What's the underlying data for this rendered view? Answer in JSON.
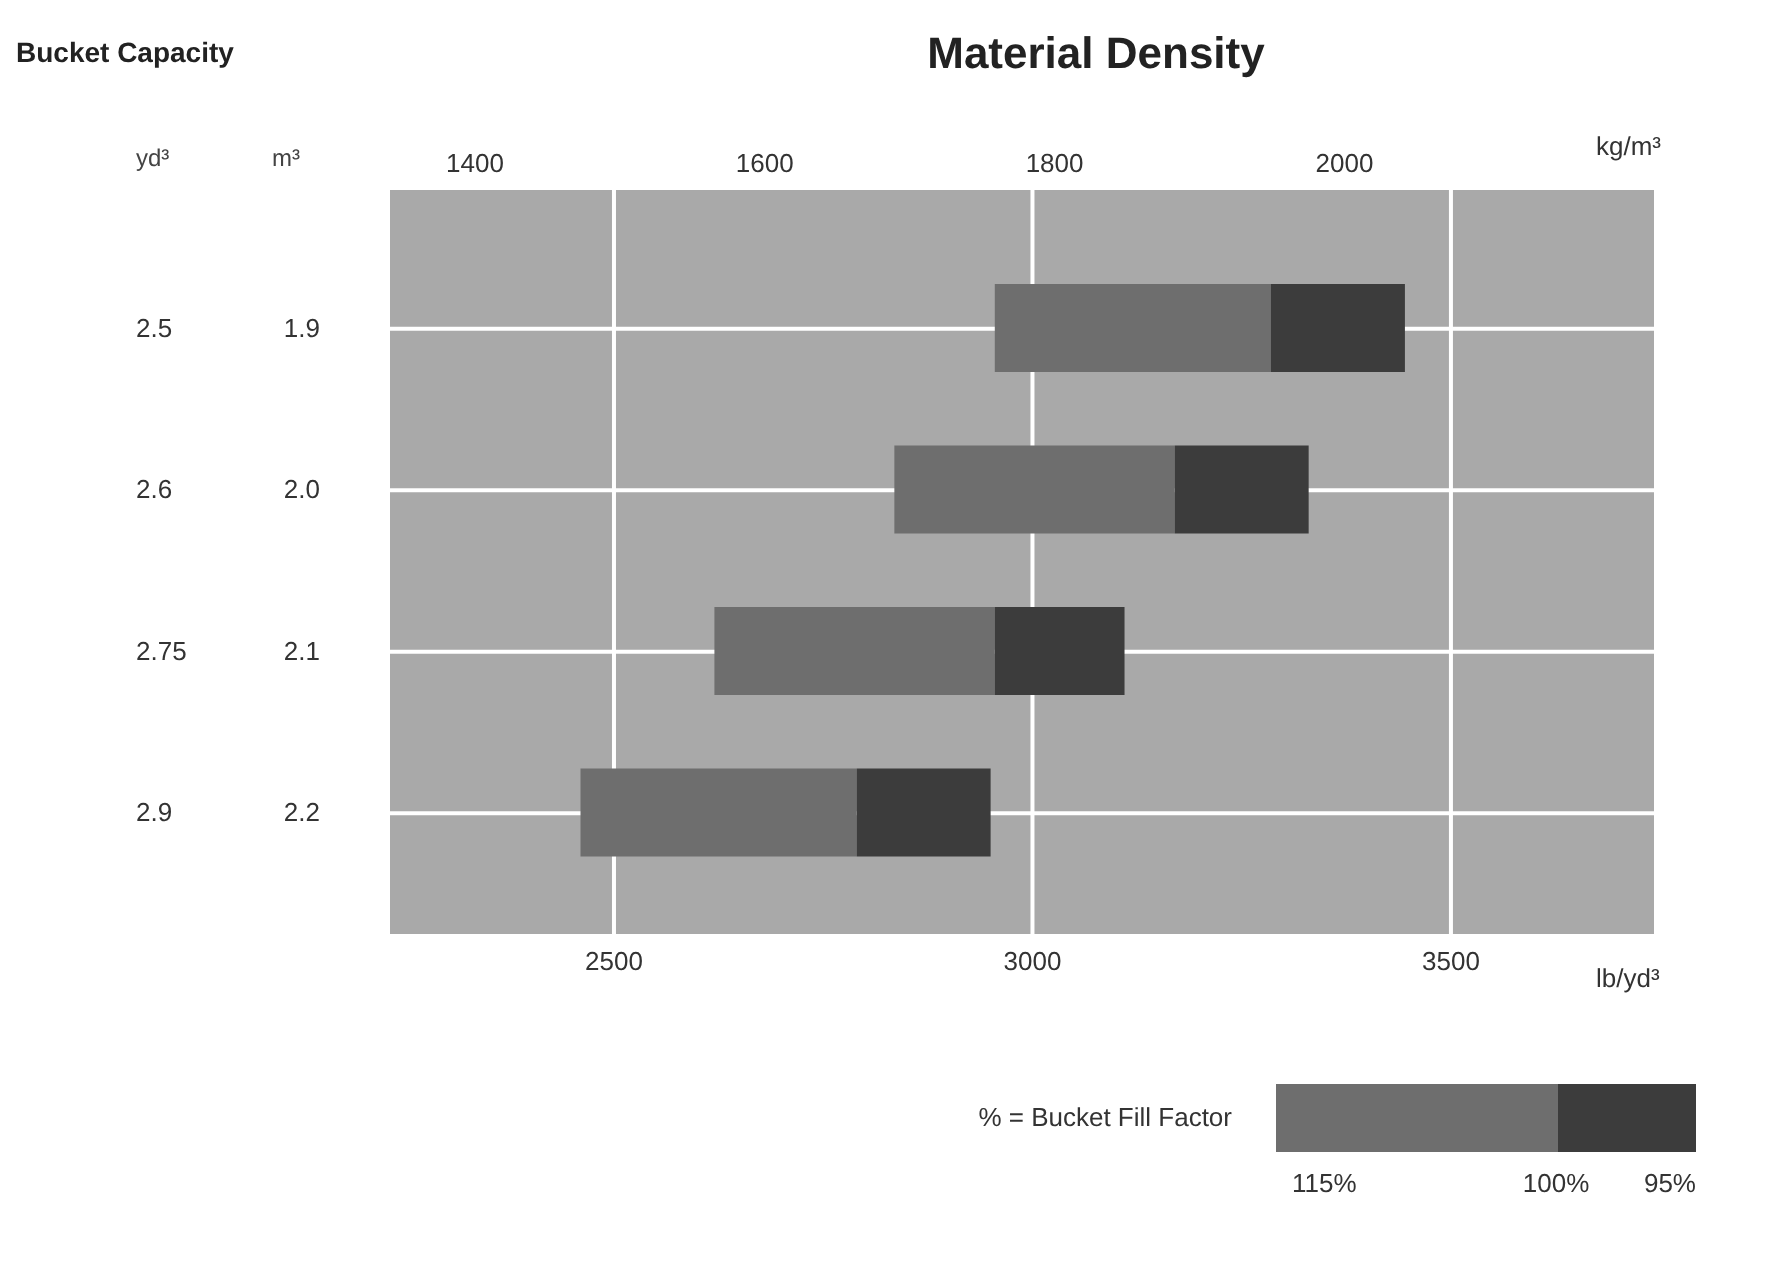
{
  "chart_data": {
    "type": "bar",
    "orientation": "horizontal",
    "title": "Material Density",
    "xlabel": "lb/yd³",
    "x2label": "kg/m³",
    "legend_title": "% = Bucket Fill Factor",
    "categories": [
      "1.9",
      "2.0",
      "2.1",
      "2.2"
    ],
    "y2_categories": [
      "2.5",
      "2.6",
      "2.75",
      "2.9"
    ],
    "series": [
      {
        "color": "#6e6e6e",
        "base": [
          2955,
          2835,
          2620,
          2460
        ],
        "values": [
          330,
          335,
          335,
          330
        ]
      },
      {
        "color": "#3c3c3c",
        "base": [
          3285,
          3170,
          2955,
          2790
        ],
        "values": [
          160,
          160,
          155,
          160
        ]
      }
    ],
    "xlim": [
      2230,
      3745
    ],
    "xticks": [
      2500,
      3000,
      3500
    ],
    "x2lim": [
      1340,
      2215
    ],
    "x2ticks": [
      1400,
      1600,
      1800,
      2000
    ],
    "grid": true,
    "annotations": [
      "Bucket Capacity",
      "yd³",
      "m³",
      "115%",
      "100%",
      "95%"
    ]
  }
}
